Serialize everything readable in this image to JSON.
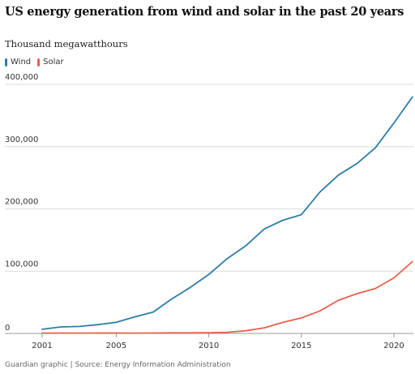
{
  "title": "US energy generation from wind and solar in the past 20 years",
  "subtitle": "Thousand megawatthours",
  "footer": "Guardian graphic | Source: Energy Information Administration",
  "colors": {
    "wind": "#2e7ea6",
    "solar": "#e8604c",
    "grid": "#dcdcdc",
    "axis": "#999999"
  },
  "legend": [
    {
      "name": "Wind",
      "color": "#2e7ea6"
    },
    {
      "name": "Solar",
      "color": "#e8604c"
    }
  ],
  "chart_data": {
    "type": "line",
    "title": "US energy generation from wind and solar in the past 20 years",
    "subtitle": "Thousand megawatthours",
    "ylim": [
      0,
      400000
    ],
    "xlim": [
      2001,
      2021
    ],
    "y_ticks": [
      {
        "value": 0,
        "label": "0"
      },
      {
        "value": 100000,
        "label": "100,000"
      },
      {
        "value": 200000,
        "label": "200,000"
      },
      {
        "value": 300000,
        "label": "300,000"
      },
      {
        "value": 400000,
        "label": "400,000"
      }
    ],
    "x_ticks": [
      {
        "value": 2001,
        "label": "2001"
      },
      {
        "value": 2005,
        "label": "2005"
      },
      {
        "value": 2010,
        "label": "2010"
      },
      {
        "value": 2015,
        "label": "2015"
      },
      {
        "value": 2020,
        "label": "2020"
      }
    ],
    "x": [
      2001,
      2002,
      2003,
      2004,
      2005,
      2006,
      2007,
      2008,
      2009,
      2010,
      2011,
      2012,
      2013,
      2014,
      2015,
      2016,
      2017,
      2018,
      2019,
      2020,
      2021
    ],
    "series": [
      {
        "name": "Wind",
        "color": "#2e7ea6",
        "values": [
          6700,
          10400,
          11200,
          14100,
          17800,
          26600,
          34400,
          55400,
          73900,
          94700,
          120200,
          140800,
          167800,
          181700,
          190700,
          227000,
          254300,
          272700,
          298300,
          338000,
          379800
        ]
      },
      {
        "name": "Solar",
        "color": "#e8604c",
        "values": [
          500,
          600,
          500,
          600,
          600,
          500,
          600,
          900,
          900,
          1200,
          1800,
          4300,
          9000,
          17700,
          24900,
          36100,
          53300,
          63800,
          72200,
          89200,
          115300
        ]
      }
    ]
  }
}
